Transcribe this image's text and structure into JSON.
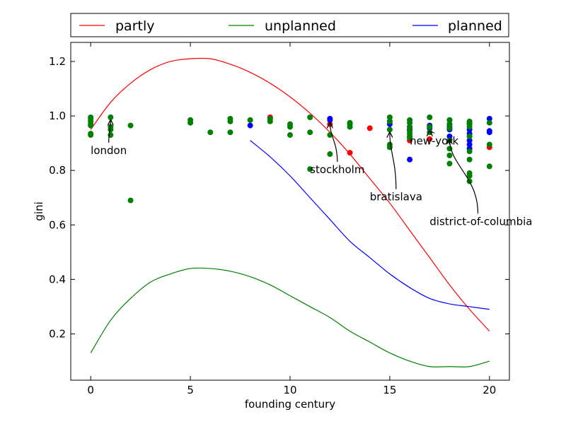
{
  "chart_data": {
    "type": "scatter",
    "title": "",
    "xlabel": "founding century",
    "ylabel": "gini",
    "xlim": [
      -1,
      21
    ],
    "ylim": [
      0.03,
      1.27
    ],
    "x_ticks": [
      "0",
      "5",
      "10",
      "15",
      "20"
    ],
    "x_tick_values": [
      0,
      5,
      10,
      15,
      20
    ],
    "y_ticks": [
      "0.2",
      "0.4",
      "0.6",
      "0.8",
      "1.0",
      "1.2"
    ],
    "y_tick_values": [
      0.2,
      0.4,
      0.6,
      0.8,
      1.0,
      1.2
    ],
    "grid": false,
    "legend_placement": "top, above plot, 3 columns",
    "colors": {
      "partly": "#ff0000",
      "unplanned": "#008000",
      "planned": "#0000ff",
      "axes": "#000000"
    },
    "series": [
      {
        "name": "partly",
        "kind": "fit-line",
        "color": "#ff0000",
        "x": [
          0,
          1,
          2,
          3,
          4,
          5,
          6,
          7,
          8,
          9,
          10,
          11,
          12,
          13,
          14,
          15,
          16,
          17,
          18,
          19,
          20
        ],
        "y": [
          0.95,
          1.05,
          1.12,
          1.17,
          1.2,
          1.21,
          1.21,
          1.19,
          1.16,
          1.12,
          1.07,
          1.01,
          0.94,
          0.86,
          0.77,
          0.68,
          0.58,
          0.48,
          0.38,
          0.29,
          0.21
        ]
      },
      {
        "name": "unplanned",
        "kind": "fit-line",
        "color": "#008000",
        "x": [
          0,
          1,
          2,
          3,
          4,
          5,
          6,
          7,
          8,
          9,
          10,
          11,
          12,
          13,
          14,
          15,
          16,
          17,
          18,
          19,
          20
        ],
        "y": [
          0.13,
          0.25,
          0.33,
          0.39,
          0.42,
          0.44,
          0.44,
          0.43,
          0.41,
          0.38,
          0.34,
          0.3,
          0.26,
          0.21,
          0.17,
          0.13,
          0.1,
          0.08,
          0.08,
          0.08,
          0.1
        ]
      },
      {
        "name": "planned",
        "kind": "fit-line",
        "color": "#0000ff",
        "x": [
          8,
          9,
          10,
          11,
          12,
          13,
          14,
          15,
          16,
          17,
          18,
          19,
          20
        ],
        "y": [
          0.91,
          0.85,
          0.78,
          0.7,
          0.62,
          0.54,
          0.48,
          0.42,
          0.37,
          0.33,
          0.31,
          0.3,
          0.29
        ]
      },
      {
        "name": "partly",
        "kind": "points",
        "color": "#ff0000",
        "x": [
          9,
          12,
          13,
          14,
          16,
          17,
          20
        ],
        "y": [
          0.995,
          0.97,
          0.865,
          0.955,
          0.91,
          0.915,
          0.885
        ]
      },
      {
        "name": "planned",
        "kind": "points",
        "color": "#0000ff",
        "x": [
          8,
          12,
          12,
          15,
          15,
          16,
          16,
          16,
          17,
          17,
          18,
          18,
          18,
          18,
          18,
          19,
          19,
          19,
          19,
          19,
          19,
          19,
          20,
          20,
          20
        ],
        "y": [
          0.965,
          0.99,
          0.985,
          0.98,
          0.97,
          0.96,
          0.95,
          0.84,
          0.965,
          0.955,
          0.985,
          0.97,
          0.96,
          0.95,
          0.925,
          0.975,
          0.97,
          0.95,
          0.935,
          0.91,
          0.895,
          0.88,
          0.99,
          0.945,
          0.94
        ]
      },
      {
        "name": "unplanned",
        "kind": "points",
        "color": "#008000",
        "x": [
          0,
          0,
          0,
          0,
          0,
          0,
          0,
          1,
          1,
          1,
          1,
          2,
          2,
          5,
          5,
          6,
          7,
          7,
          7,
          8,
          9,
          9,
          10,
          10,
          10,
          11,
          11,
          11,
          12,
          12,
          13,
          13,
          13,
          15,
          15,
          15,
          15,
          15,
          16,
          16,
          16,
          16,
          16,
          16,
          16,
          17,
          17,
          17,
          18,
          18,
          18,
          18,
          18,
          18,
          18,
          19,
          19,
          19,
          19,
          19,
          19,
          19,
          19,
          19,
          20,
          20,
          20
        ],
        "y": [
          0.995,
          0.99,
          0.98,
          0.97,
          0.965,
          0.935,
          0.93,
          0.995,
          0.96,
          0.95,
          0.93,
          0.965,
          0.69,
          0.985,
          0.975,
          0.94,
          0.99,
          0.98,
          0.94,
          0.985,
          0.99,
          0.98,
          0.97,
          0.96,
          0.93,
          0.995,
          0.94,
          0.805,
          0.93,
          0.86,
          0.975,
          0.97,
          0.96,
          0.995,
          0.98,
          0.95,
          0.895,
          0.885,
          0.985,
          0.975,
          0.96,
          0.945,
          0.935,
          0.925,
          0.92,
          0.995,
          0.96,
          0.94,
          0.985,
          0.97,
          0.955,
          0.91,
          0.88,
          0.855,
          0.825,
          0.98,
          0.97,
          0.96,
          0.925,
          0.87,
          0.84,
          0.79,
          0.78,
          0.76,
          0.975,
          0.895,
          0.815
        ]
      }
    ],
    "annotations": [
      {
        "text": "london",
        "point": [
          1,
          0.995
        ],
        "text_pos": [
          0,
          0.86
        ]
      },
      {
        "text": "stockholm",
        "point": [
          12,
          0.985
        ],
        "text_pos": [
          11,
          0.79
        ]
      },
      {
        "text": "bratislava",
        "point": [
          15,
          0.95
        ],
        "text_pos": [
          14,
          0.69
        ]
      },
      {
        "text": "new-york",
        "point": [
          17,
          0.955
        ],
        "text_pos": [
          16,
          0.895
        ]
      },
      {
        "text": "district-of-columbia",
        "point": [
          18,
          0.925
        ],
        "text_pos": [
          17,
          0.6
        ]
      }
    ]
  }
}
